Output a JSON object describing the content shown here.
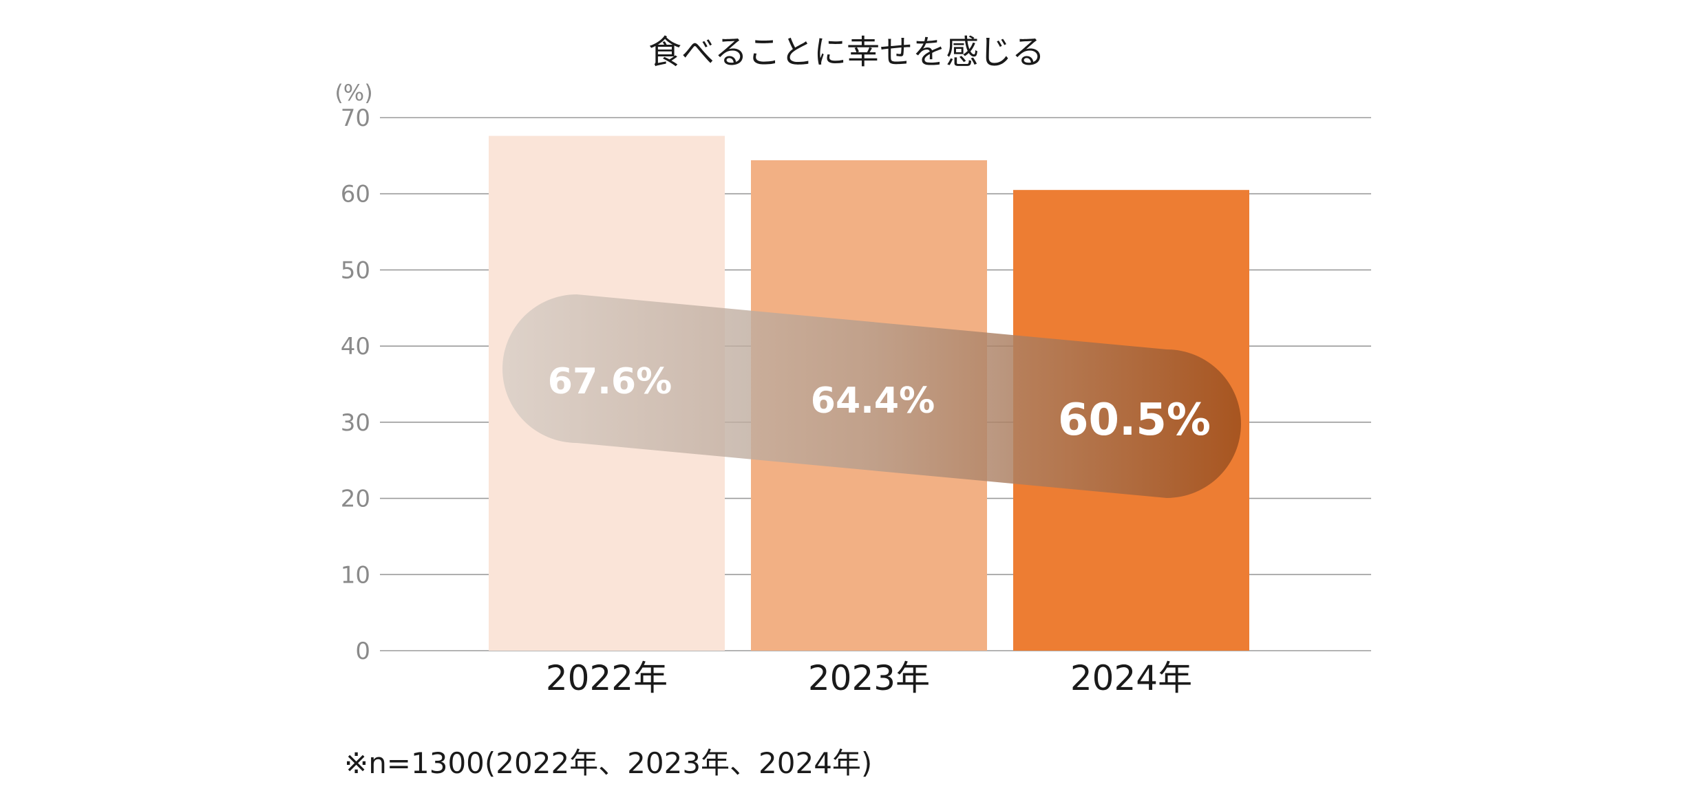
{
  "chart_data": {
    "type": "bar",
    "title": "食べることに幸せを感じる",
    "unit_label": "(%)",
    "categories": [
      "2022年",
      "2023年",
      "2024年"
    ],
    "values": [
      67.6,
      64.4,
      60.5
    ],
    "value_labels": [
      "67.6%",
      "64.4%",
      "60.5%"
    ],
    "ylim": [
      0,
      70
    ],
    "yticks": [
      "70",
      "60",
      "50",
      "40",
      "30",
      "20",
      "10",
      "0"
    ],
    "grid": true,
    "legend": "none",
    "footnote": "※n=1300(2022年、2023年、2024年)"
  },
  "colors": {
    "bars": [
      "#fae4d8",
      "#f2b084",
      "#ed7d33"
    ],
    "grid": "#9a9a9a",
    "trend_band_start": "#d9cfc7",
    "trend_band_end": "#a4531f"
  }
}
